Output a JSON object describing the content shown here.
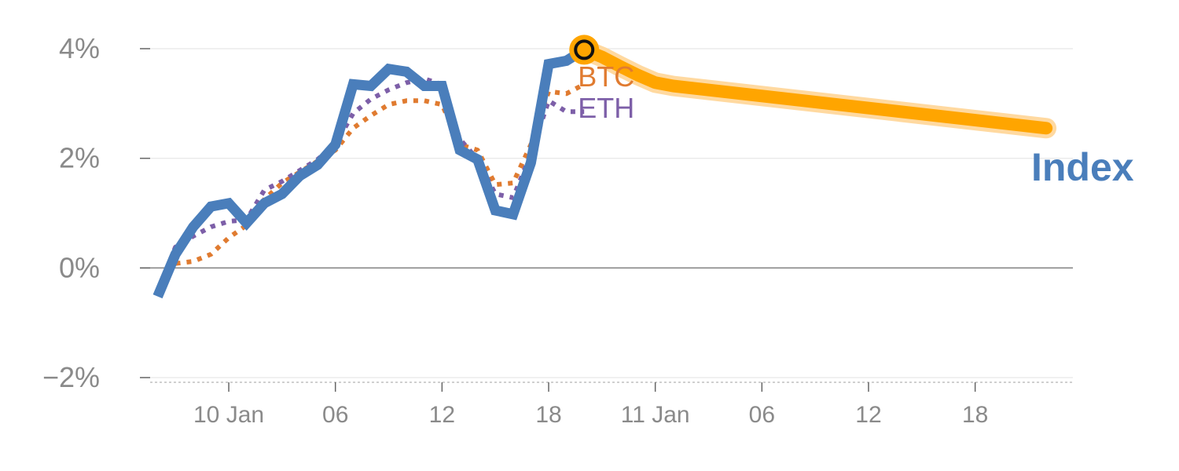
{
  "colors": {
    "index": "#4a7ebb",
    "btc": "#e07b30",
    "eth": "#7d5fa8",
    "forecast": "#ffa500",
    "forecast_glow": "#ffd9a0",
    "grid": "#e6e6e6",
    "zero": "#888888",
    "text": "#8a8a8a"
  },
  "chart_data": {
    "type": "line",
    "title": "",
    "xlabel": "",
    "ylabel": "",
    "ylim": [
      -0.02,
      0.04
    ],
    "grid": true,
    "y_ticks": [
      {
        "value": 0.04,
        "label": "4%"
      },
      {
        "value": 0.02,
        "label": "2%"
      },
      {
        "value": 0.0,
        "label": "0%"
      },
      {
        "value": -0.02,
        "label": "−2%"
      }
    ],
    "x_ticks": [
      {
        "value": 4,
        "label": "10 Jan"
      },
      {
        "value": 10,
        "label": "06"
      },
      {
        "value": 16,
        "label": "12"
      },
      {
        "value": 22,
        "label": "18"
      },
      {
        "value": 28,
        "label": "11 Jan"
      },
      {
        "value": 34,
        "label": "06"
      },
      {
        "value": 40,
        "label": "12"
      },
      {
        "value": 46,
        "label": "18"
      }
    ],
    "x_range": [
      -1,
      51.5
    ],
    "series": [
      {
        "name": "Index",
        "key": "index",
        "style": "solid",
        "x": [
          0,
          1,
          2,
          3,
          4,
          5,
          6,
          7,
          8,
          9,
          10,
          11,
          12,
          13,
          14,
          15,
          16,
          17,
          18,
          19,
          20,
          21,
          22,
          23,
          24
        ],
        "values": [
          -0.0052,
          0.0025,
          0.0075,
          0.0112,
          0.0118,
          0.0082,
          0.0118,
          0.0135,
          0.0168,
          0.0188,
          0.0225,
          0.0335,
          0.0332,
          0.0363,
          0.0358,
          0.0332,
          0.0332,
          0.0215,
          0.0198,
          0.0105,
          0.0098,
          0.0192,
          0.0372,
          0.0378,
          0.0398
        ]
      },
      {
        "name": "BTC",
        "key": "btc",
        "style": "dotted",
        "x": [
          0,
          1,
          2,
          3,
          4,
          5,
          6,
          7,
          8,
          9,
          10,
          11,
          12,
          13,
          14,
          15,
          16,
          17,
          18,
          19,
          20,
          21,
          22,
          23,
          24
        ],
        "values": [
          -0.0042,
          0.0008,
          0.0012,
          0.0025,
          0.0055,
          0.0078,
          0.0125,
          0.0155,
          0.0175,
          0.0195,
          0.0215,
          0.0255,
          0.0278,
          0.0298,
          0.0305,
          0.0305,
          0.0298,
          0.0225,
          0.0215,
          0.0152,
          0.0155,
          0.0225,
          0.0322,
          0.0318,
          0.0335
        ]
      },
      {
        "name": "ETH",
        "key": "eth",
        "style": "dotted",
        "x": [
          0,
          1,
          2,
          3,
          4,
          5,
          6,
          7,
          8,
          9,
          10,
          11,
          12,
          13,
          14,
          15,
          16,
          17,
          18,
          19,
          20,
          21,
          22,
          23,
          24
        ],
        "values": [
          -0.0042,
          0.0038,
          0.0058,
          0.0075,
          0.0085,
          0.0088,
          0.0142,
          0.0158,
          0.0178,
          0.0198,
          0.0225,
          0.0282,
          0.0308,
          0.0325,
          0.0338,
          0.0345,
          0.0335,
          0.0235,
          0.0198,
          0.0135,
          0.0128,
          0.0208,
          0.0305,
          0.0285,
          0.0285
        ]
      },
      {
        "name": "",
        "key": "forecast",
        "style": "band",
        "x": [
          24,
          25,
          26,
          27,
          28,
          29,
          50
        ],
        "values": [
          0.0398,
          0.0385,
          0.0368,
          0.0352,
          0.0338,
          0.0332,
          0.0255
        ]
      }
    ],
    "highlight_point": {
      "x": 24,
      "y": 0.0398
    },
    "labels": {
      "btc": "BTC",
      "eth": "ETH",
      "index": "Index"
    }
  }
}
